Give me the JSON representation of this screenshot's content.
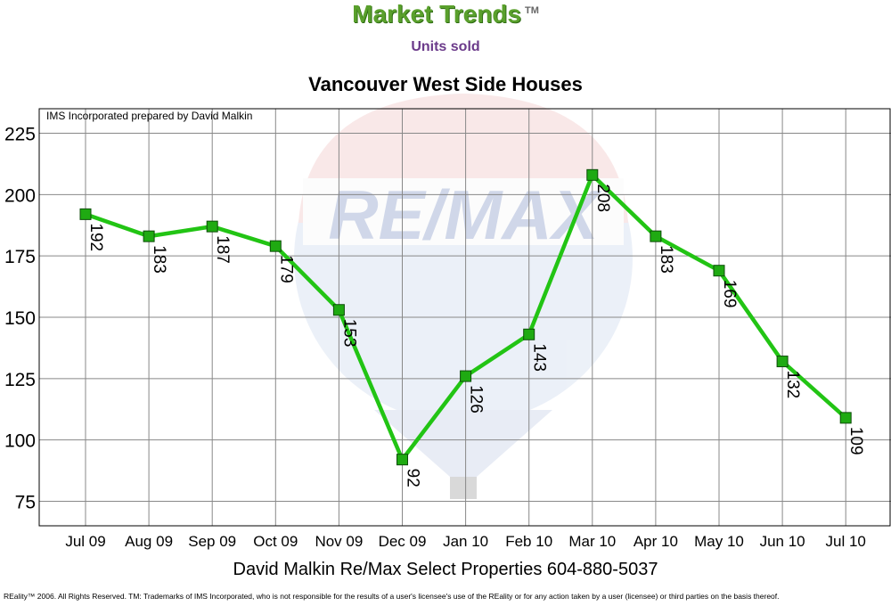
{
  "header": {
    "brand_title": "Market Trends",
    "brand_tm": "TM",
    "brand_subtitle": "Units sold",
    "chart_title": "Vancouver West Side Houses"
  },
  "chart_data": {
    "type": "line",
    "title": "Vancouver West Side Houses",
    "annotation": "IMS Incorporated prepared by David Malkin",
    "xlabel": "",
    "ylabel": "",
    "categories": [
      "Jul 09",
      "Aug 09",
      "Sep 09",
      "Oct 09",
      "Nov 09",
      "Dec 09",
      "Jan 10",
      "Feb 10",
      "Mar 10",
      "Apr 10",
      "May 10",
      "Jun 10",
      "Jul 10"
    ],
    "series": [
      {
        "values": [
          192,
          183,
          187,
          179,
          153,
          92,
          126,
          143,
          208,
          183,
          169,
          132,
          109
        ]
      }
    ],
    "ylim": [
      65,
      235
    ],
    "yticks": [
      75,
      100,
      125,
      150,
      175,
      200,
      225
    ],
    "grid": true,
    "line_color": "#22c414",
    "marker_color": "#1faa12",
    "watermark_brand": "RE/MAX"
  },
  "footer": {
    "contact": "David Malkin Re/Max Select Properties 604-880-5037",
    "legal": "REality™ 2006. All Rights Reserved. TM: Trademarks of IMS Incorporated, who is not responsible for the results of a user's licensee's use of the REality  or for any action taken by a user (licensee) or third parties on the basis thereof."
  }
}
